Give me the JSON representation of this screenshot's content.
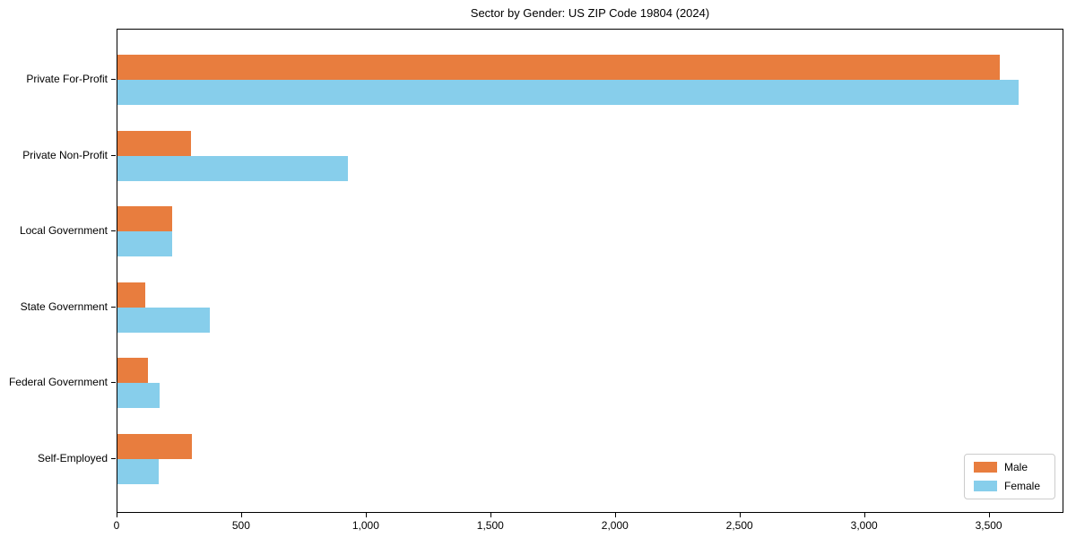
{
  "chart_data": {
    "type": "bar",
    "orientation": "horizontal",
    "title": "Sector by Gender: US ZIP Code 19804 (2024)",
    "categories": [
      "Private For-Profit",
      "Private Non-Profit",
      "Local Government",
      "State Government",
      "Federal Government",
      "Self-Employed"
    ],
    "series": [
      {
        "name": "Male",
        "color": "#e87d3e",
        "values": [
          3540,
          295,
          220,
          112,
          122,
          300
        ]
      },
      {
        "name": "Female",
        "color": "#87ceeb",
        "values": [
          3615,
          925,
          220,
          370,
          170,
          165
        ]
      }
    ],
    "xlabel": "",
    "ylabel": "",
    "xlim": [
      0,
      3800
    ],
    "xticks": [
      0,
      500,
      1000,
      1500,
      2000,
      2500,
      3000,
      3500
    ],
    "xtick_labels": [
      "0",
      "500",
      "1,000",
      "1,500",
      "2,000",
      "2,500",
      "3,000",
      "3,500"
    ],
    "grid": false,
    "legend": {
      "position": "lower right"
    },
    "colors": {
      "axis": "#000000",
      "text": "#000000",
      "legend_border": "#cccccc",
      "background": "#ffffff"
    }
  }
}
